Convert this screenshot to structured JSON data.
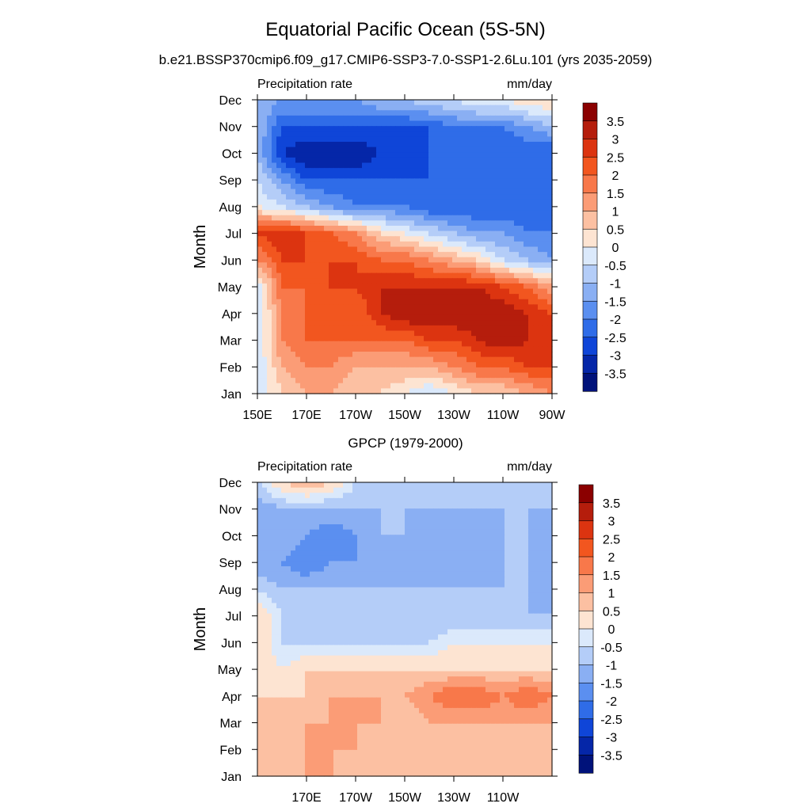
{
  "figure": {
    "title": "Equatorial Pacific Ocean (5S-5N)",
    "subtitle": "b.e21.BSSP370cmip6.f09_g17.CMIP6-SSP3-7.0-SSP1-2.6Lu.101 (yrs 2035-2059)"
  },
  "chart_data": [
    {
      "type": "heatmap",
      "title": "",
      "left_string": "Precipitation rate",
      "right_string": "mm/day",
      "ylabel": "Month",
      "xlabel": "",
      "x_ticks": [
        "150E",
        "170E",
        "170W",
        "150W",
        "130W",
        "110W",
        "90W"
      ],
      "x_tick_lon": [
        150,
        170,
        190,
        210,
        230,
        250,
        270
      ],
      "xlim": [
        150,
        270
      ],
      "y_ticks": [
        "Jan",
        "Feb",
        "Mar",
        "Apr",
        "May",
        "Jun",
        "Jul",
        "Aug",
        "Sep",
        "Oct",
        "Nov",
        "Dec"
      ],
      "ylim": [
        1,
        12
      ],
      "colorbar_labels": [
        "3.5",
        "3",
        "2.5",
        "2",
        "1.5",
        "1",
        "0.5",
        "0",
        "-0.5",
        "-1",
        "-1.5",
        "-2",
        "-2.5",
        "-3",
        "-3.5"
      ],
      "colorbar_colors": [
        "#8b0000",
        "#b51d0c",
        "#dc3410",
        "#f2561f",
        "#f8784a",
        "#fb9c76",
        "#fcc0a2",
        "#fde4d2",
        "#dbe9fb",
        "#b4cdf8",
        "#8aaff3",
        "#5b8ff0",
        "#2f6ce8",
        "#0f45d8",
        "#0526a8",
        "#00127a"
      ],
      "x": [
        150,
        160,
        170,
        180,
        190,
        200,
        210,
        220,
        230,
        240,
        250,
        260,
        270
      ],
      "z": [
        [
          -0.5,
          0.5,
          1.0,
          1.0,
          0.5,
          0.5,
          0.0,
          -0.5,
          0.0,
          0.5,
          0.5,
          1.0,
          1.5
        ],
        [
          -0.5,
          1.0,
          1.5,
          1.5,
          1.0,
          1.0,
          1.0,
          1.0,
          1.5,
          2.0,
          2.0,
          2.5,
          2.5
        ],
        [
          -0.5,
          1.5,
          2.0,
          2.0,
          2.0,
          2.0,
          2.0,
          2.5,
          2.5,
          3.0,
          3.5,
          3.0,
          2.5
        ],
        [
          -0.5,
          1.5,
          2.0,
          2.0,
          2.0,
          3.0,
          3.5,
          3.5,
          3.5,
          3.5,
          3.5,
          3.0,
          2.5
        ],
        [
          -0.5,
          2.0,
          2.0,
          2.5,
          2.5,
          3.0,
          3.0,
          3.0,
          3.0,
          3.0,
          2.5,
          2.0,
          1.0
        ],
        [
          1.5,
          2.5,
          2.5,
          2.5,
          2.5,
          2.0,
          2.0,
          1.5,
          1.0,
          0.5,
          -0.5,
          -1.0,
          -1.5
        ],
        [
          2.5,
          3.0,
          2.5,
          2.0,
          1.5,
          0.5,
          0.0,
          -0.5,
          -1.0,
          -1.5,
          -1.5,
          -2.0,
          -2.0
        ],
        [
          0.0,
          -0.5,
          -1.0,
          -1.5,
          -2.0,
          -2.0,
          -2.0,
          -2.5,
          -2.5,
          -2.5,
          -2.5,
          -2.5,
          -2.0
        ],
        [
          -0.5,
          -1.5,
          -2.5,
          -2.5,
          -2.5,
          -2.5,
          -2.5,
          -2.5,
          -2.5,
          -2.5,
          -2.5,
          -2.5,
          -2.5
        ],
        [
          -1.0,
          -3.0,
          -3.5,
          -3.5,
          -3.5,
          -3.0,
          -3.0,
          -2.5,
          -2.5,
          -2.5,
          -2.5,
          -2.5,
          -2.5
        ],
        [
          -1.0,
          -2.5,
          -2.5,
          -2.5,
          -2.5,
          -2.5,
          -2.5,
          -2.5,
          -2.0,
          -2.0,
          -2.0,
          -1.5,
          -1.0
        ],
        [
          -1.0,
          -1.5,
          -1.5,
          -1.5,
          -1.5,
          -1.0,
          -1.0,
          -0.5,
          -0.5,
          0.0,
          0.0,
          0.5,
          0.5
        ]
      ]
    },
    {
      "type": "heatmap",
      "title": "GPCP (1979-2000)",
      "left_string": "Precipitation rate",
      "right_string": "mm/day",
      "ylabel": "Month",
      "xlabel": "",
      "x_ticks": [
        "170E",
        "170W",
        "150W",
        "130W",
        "110W"
      ],
      "x_tick_lon": [
        170,
        190,
        210,
        230,
        250
      ],
      "xlim": [
        150,
        270
      ],
      "y_ticks": [
        "Jan",
        "Feb",
        "Mar",
        "Apr",
        "May",
        "Jun",
        "Jul",
        "Aug",
        "Sep",
        "Oct",
        "Nov",
        "Dec"
      ],
      "ylim": [
        1,
        12
      ],
      "colorbar_labels": [
        "3.5",
        "3",
        "2.5",
        "2",
        "1.5",
        "1",
        "0.5",
        "0",
        "-0.5",
        "-1",
        "-1.5",
        "-2",
        "-2.5",
        "-3",
        "-3.5"
      ],
      "colorbar_colors": [
        "#8b0000",
        "#b51d0c",
        "#dc3410",
        "#f2561f",
        "#f8784a",
        "#fb9c76",
        "#fcc0a2",
        "#fde4d2",
        "#dbe9fb",
        "#b4cdf8",
        "#8aaff3",
        "#5b8ff0",
        "#2f6ce8",
        "#0f45d8",
        "#0526a8",
        "#00127a"
      ],
      "x": [
        150,
        160,
        170,
        180,
        190,
        200,
        210,
        220,
        230,
        240,
        250,
        260,
        270
      ],
      "z": [
        [
          0.5,
          0.5,
          1.0,
          1.0,
          0.5,
          0.5,
          0.5,
          0.5,
          0.5,
          0.5,
          0.5,
          0.5,
          0.5
        ],
        [
          0.5,
          1.0,
          1.0,
          1.0,
          1.0,
          0.5,
          0.5,
          0.5,
          0.5,
          0.5,
          0.5,
          0.5,
          0.5
        ],
        [
          1.0,
          0.5,
          1.0,
          1.0,
          1.0,
          1.0,
          0.5,
          1.0,
          1.0,
          1.0,
          1.0,
          1.0,
          1.0
        ],
        [
          0.5,
          0.5,
          0.5,
          1.0,
          1.0,
          1.0,
          1.0,
          1.5,
          2.0,
          2.0,
          1.5,
          2.0,
          1.5
        ],
        [
          0.5,
          0.0,
          0.5,
          0.5,
          0.5,
          0.5,
          0.5,
          0.5,
          0.5,
          0.5,
          0.5,
          0.5,
          0.5
        ],
        [
          0.5,
          -0.5,
          -0.5,
          -0.5,
          -0.5,
          -0.5,
          -0.5,
          -0.5,
          0.0,
          0.0,
          0.0,
          0.0,
          0.0
        ],
        [
          0.5,
          -0.5,
          -1.0,
          -1.0,
          -1.0,
          -1.0,
          -1.0,
          -1.0,
          -1.0,
          -1.0,
          -1.0,
          -1.0,
          -1.0
        ],
        [
          -0.5,
          -1.0,
          -1.0,
          -1.0,
          -1.0,
          -1.0,
          -1.0,
          -1.0,
          -1.0,
          -1.0,
          -1.0,
          -1.0,
          -1.5
        ],
        [
          -1.5,
          -1.5,
          -2.0,
          -1.5,
          -1.5,
          -1.5,
          -1.5,
          -1.5,
          -1.5,
          -1.5,
          -1.0,
          -1.0,
          -1.5
        ],
        [
          -1.5,
          -1.0,
          -1.5,
          -2.0,
          -1.5,
          -1.0,
          -1.0,
          -1.5,
          -1.5,
          -1.5,
          -1.0,
          -1.0,
          -1.5
        ],
        [
          -1.5,
          -1.0,
          -1.0,
          -1.0,
          -1.0,
          -1.0,
          -1.0,
          -1.0,
          -1.0,
          -1.0,
          -1.0,
          -1.0,
          -1.0
        ],
        [
          -0.5,
          0.5,
          1.0,
          0.5,
          -0.5,
          -0.5,
          -0.5,
          -0.5,
          -0.5,
          -0.5,
          -0.5,
          -1.0,
          -1.0
        ]
      ]
    }
  ]
}
